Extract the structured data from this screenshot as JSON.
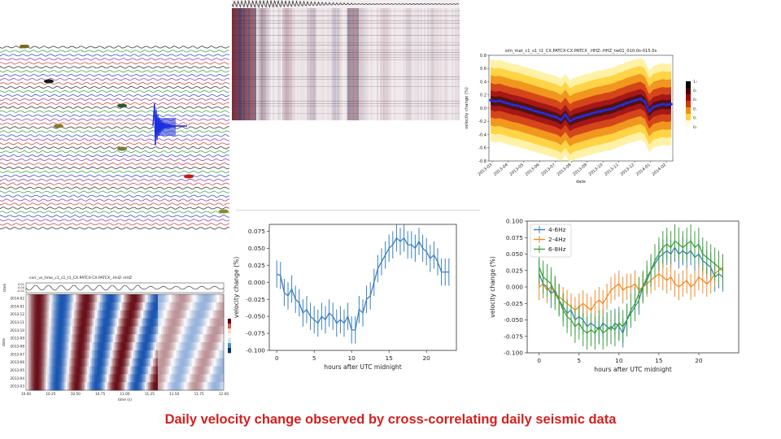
{
  "caption": "Daily velocity change observed by cross-correlating daily seismic data",
  "chart_data": [
    {
      "id": "waveform-gather",
      "type": "waveform",
      "title": "",
      "colors": [
        "#1a1a1a",
        "#1f9c2a",
        "#2233cc",
        "#7a2a9a",
        "#d12a2a"
      ]
    },
    {
      "id": "correlation-matrix",
      "type": "heatmap",
      "title": "",
      "colormap": [
        "#2b1e4e",
        "#ffffff",
        "#6a1a1a"
      ]
    },
    {
      "id": "velocity-change-density",
      "type": "heatmap",
      "title": "sim_mat_c1_s1_t1_CX.PATCX-CX.PATCX_.HHZ-.HHZ_tw01_010.0s-015.0s",
      "xlabel": "date",
      "ylabel": "velocity change (%)",
      "x_ticks": [
        "2013-03",
        "2013-04",
        "2013-05",
        "2013-06",
        "2013-07",
        "2013-08",
        "2013-09",
        "2013-10",
        "2013-11",
        "2013-12",
        "2014-01",
        "2014-02"
      ],
      "y_ticks": [
        "0.8",
        "0.6",
        "0.4",
        "0.2",
        "0.0",
        "-0.2",
        "-0.4",
        "-0.6",
        "-0.8"
      ],
      "ylim": [
        -0.8,
        0.8
      ],
      "colorbar_ticks": [
        "1.0",
        "0.8",
        "0.6",
        "0.4",
        "0.2",
        "0.0"
      ],
      "median_line_color": "#2030e8",
      "median_series": [
        0.12,
        0.1,
        0.11,
        0.09,
        0.07,
        0.05,
        0.04,
        0.02,
        0.0,
        -0.02,
        -0.04,
        -0.06,
        -0.08,
        -0.1,
        -0.12,
        -0.14,
        -0.18,
        -0.1,
        -0.2,
        -0.16,
        -0.14,
        -0.12,
        -0.1,
        -0.08,
        -0.06,
        -0.05,
        -0.03,
        -0.02,
        0.0,
        0.03,
        0.05,
        0.08,
        0.1,
        0.12,
        0.14,
        0.1,
        -0.05,
        0.02,
        0.04,
        0.06,
        0.05,
        0.06
      ]
    },
    {
      "id": "corr-vs-time",
      "type": "heatmap",
      "title": "corr_vs_time_c1_s1_t1_CX.PATCX-CX.PATCX_.HHZ-.HHZ",
      "xlabel": "time (s)",
      "ylabel": "date",
      "x_ticks": [
        "10.00",
        "10.25",
        "10.50",
        "10.75",
        "11.00",
        "11.25",
        "11.50",
        "11.75",
        "12.00"
      ],
      "y_ticks": [
        "2014-02",
        "2014-01",
        "2013-12",
        "2013-11",
        "2013-10",
        "2013-09",
        "2013-08",
        "2013-07",
        "2013-06",
        "2013-05",
        "2013-04",
        "2013-03"
      ],
      "stack_ticks": [
        "0.01",
        "0.00",
        "-0.01"
      ],
      "stack_label": "stack",
      "colormap": [
        "#08306b",
        "#ffffff",
        "#67000d"
      ]
    },
    {
      "id": "hourly-velocity-change",
      "type": "line",
      "title": "",
      "xlabel": "hours after UTC midnight",
      "ylabel": "velocity change (%)",
      "xlim": [
        -1,
        24
      ],
      "ylim": [
        -0.1,
        0.085
      ],
      "x_ticks": [
        "0",
        "5",
        "10",
        "15",
        "20"
      ],
      "y_ticks": [
        "0.075",
        "0.050",
        "0.025",
        "0.000",
        "-0.025",
        "-0.050",
        "-0.075",
        "-0.100"
      ],
      "series": [
        {
          "color": "#3a7fc0",
          "x": [
            0,
            0.5,
            1,
            1.5,
            2,
            2.5,
            3,
            3.5,
            4,
            4.5,
            5,
            5.5,
            6,
            6.5,
            7,
            7.5,
            8,
            8.5,
            9,
            9.5,
            10,
            10.5,
            11,
            11.5,
            12,
            12.5,
            13,
            13.5,
            14,
            14.5,
            15,
            15.5,
            16,
            16.5,
            17,
            17.5,
            18,
            18.5,
            19,
            19.5,
            20,
            20.5,
            21,
            21.5,
            22,
            22.5,
            23
          ],
          "y": [
            0.012,
            0.01,
            -0.015,
            -0.02,
            -0.01,
            -0.025,
            -0.03,
            -0.045,
            -0.04,
            -0.05,
            -0.055,
            -0.06,
            -0.05,
            -0.055,
            -0.045,
            -0.05,
            -0.06,
            -0.055,
            -0.06,
            -0.05,
            -0.07,
            -0.07,
            -0.04,
            -0.045,
            -0.025,
            -0.02,
            0.0,
            0.02,
            0.03,
            0.04,
            0.05,
            0.055,
            0.065,
            0.06,
            0.065,
            0.055,
            0.055,
            0.05,
            0.06,
            0.05,
            0.045,
            0.035,
            0.04,
            0.03,
            0.015,
            0.015,
            0.015
          ],
          "err": 0.02
        }
      ]
    },
    {
      "id": "hourly-velocity-change-bands",
      "type": "line",
      "title": "",
      "xlabel": "hours after UTC midnight",
      "ylabel": "velocity change (%)",
      "xlim": [
        -1.5,
        25
      ],
      "ylim": [
        -0.1,
        0.1
      ],
      "x_ticks": [
        "0",
        "5",
        "10",
        "15",
        "20"
      ],
      "y_ticks": [
        "0.100",
        "0.075",
        "0.050",
        "0.025",
        "0.000",
        "-0.025",
        "-0.050",
        "-0.075",
        "-0.100"
      ],
      "legend_position": "top-left",
      "series": [
        {
          "name": "4-6Hz",
          "color": "#3a7fc0",
          "x": [
            0,
            0.5,
            1,
            1.5,
            2,
            2.5,
            3,
            3.5,
            4,
            4.5,
            5,
            5.5,
            6,
            6.5,
            7,
            7.5,
            8,
            8.5,
            9,
            9.5,
            10,
            10.5,
            11,
            11.5,
            12,
            12.5,
            13,
            13.5,
            14,
            14.5,
            15,
            15.5,
            16,
            16.5,
            17,
            17.5,
            18,
            18.5,
            19,
            19.5,
            20,
            20.5,
            21,
            21.5,
            22,
            22.5,
            23
          ],
          "y": [
            0.02,
            0.005,
            0.0,
            -0.01,
            -0.005,
            -0.02,
            -0.03,
            -0.04,
            -0.035,
            -0.05,
            -0.045,
            -0.05,
            -0.06,
            -0.055,
            -0.06,
            -0.065,
            -0.055,
            -0.06,
            -0.065,
            -0.055,
            -0.06,
            -0.07,
            -0.05,
            -0.04,
            -0.03,
            -0.02,
            0.0,
            0.01,
            0.025,
            0.035,
            0.045,
            0.05,
            0.055,
            0.05,
            0.06,
            0.05,
            0.055,
            0.05,
            0.055,
            0.045,
            0.05,
            0.04,
            0.035,
            0.03,
            0.015,
            0.02,
            0.015
          ],
          "err": 0.022
        },
        {
          "name": "2-4Hz",
          "color": "#f08a24",
          "x": [
            0,
            0.5,
            1,
            1.5,
            2,
            2.5,
            3,
            3.5,
            4,
            4.5,
            5,
            5.5,
            6,
            6.5,
            7,
            7.5,
            8,
            8.5,
            9,
            9.5,
            10,
            10.5,
            11,
            11.5,
            12,
            12.5,
            13,
            13.5,
            14,
            14.5,
            15,
            15.5,
            16,
            16.5,
            17,
            17.5,
            18,
            18.5,
            19,
            19.5,
            20,
            20.5,
            21,
            21.5,
            22,
            22.5,
            23
          ],
          "y": [
            0.0,
            0.005,
            -0.005,
            0.0,
            -0.01,
            -0.015,
            -0.02,
            -0.025,
            -0.03,
            -0.035,
            -0.03,
            -0.025,
            -0.03,
            -0.035,
            -0.025,
            -0.02,
            -0.025,
            -0.015,
            -0.005,
            0.0,
            0.005,
            -0.005,
            0.0,
            0.0,
            0.005,
            -0.005,
            0.0,
            0.005,
            0.01,
            0.015,
            0.02,
            0.015,
            0.01,
            0.015,
            0.005,
            0.0,
            0.005,
            0.01,
            0.0,
            0.005,
            0.015,
            0.01,
            0.005,
            0.01,
            0.02,
            0.025,
            0.03
          ],
          "err": 0.02
        },
        {
          "name": "6-8Hz",
          "color": "#3aa03a",
          "x": [
            0,
            0.5,
            1,
            1.5,
            2,
            2.5,
            3,
            3.5,
            4,
            4.5,
            5,
            5.5,
            6,
            6.5,
            7,
            7.5,
            8,
            8.5,
            9,
            9.5,
            10,
            10.5,
            11,
            11.5,
            12,
            12.5,
            13,
            13.5,
            14,
            14.5,
            15,
            15.5,
            16,
            16.5,
            17,
            17.5,
            18,
            18.5,
            19,
            19.5,
            20,
            20.5,
            21,
            21.5,
            22,
            22.5,
            23
          ],
          "y": [
            0.03,
            0.015,
            0.01,
            0.005,
            -0.01,
            -0.02,
            -0.035,
            -0.045,
            -0.05,
            -0.06,
            -0.055,
            -0.065,
            -0.07,
            -0.065,
            -0.07,
            -0.06,
            -0.07,
            -0.065,
            -0.06,
            -0.065,
            -0.055,
            -0.06,
            -0.05,
            -0.035,
            -0.025,
            -0.01,
            0.0,
            0.015,
            0.025,
            0.04,
            0.05,
            0.06,
            0.065,
            0.06,
            0.07,
            0.065,
            0.06,
            0.065,
            0.07,
            0.06,
            0.065,
            0.05,
            0.045,
            0.04,
            0.035,
            0.03,
            0.025
          ],
          "err": 0.025
        }
      ]
    }
  ]
}
